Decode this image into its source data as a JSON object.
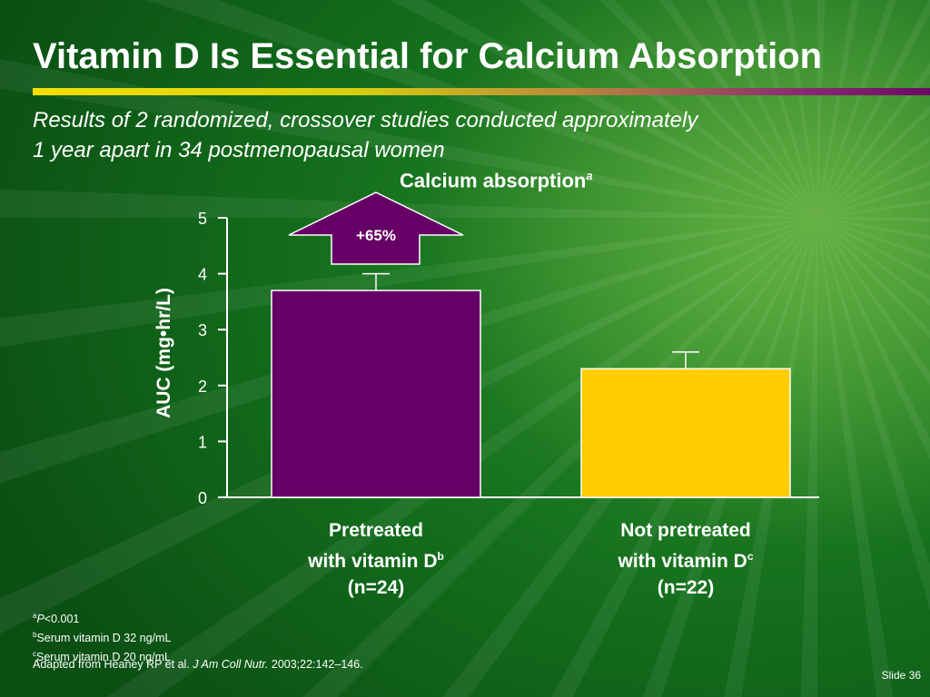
{
  "slide": {
    "title": "Vitamin D Is Essential for Calcium Absorption",
    "subtitle_line1": "Results of 2 randomized, crossover studies conducted approximately",
    "subtitle_line2": "1 year apart in 34 postmenopausal women",
    "slide_number": "Slide 36"
  },
  "chart_data": {
    "type": "bar",
    "title": "Calcium absorption",
    "title_superscript": "a",
    "ylabel": "AUC (mg•hr/L)",
    "ylim": [
      0,
      5
    ],
    "yticks": [
      "0",
      "1",
      "2",
      "3",
      "4",
      "5"
    ],
    "categories": [
      {
        "line1": "Pretreated",
        "line2": "with vitamin D",
        "sup": "b",
        "line3": "(n=24)"
      },
      {
        "line1": "Not pretreated",
        "line2": "with vitamin D",
        "sup": "c",
        "line3": "(n=22)"
      }
    ],
    "values": [
      3.7,
      2.3
    ],
    "error_upper": [
      4.0,
      2.6
    ],
    "bar_colors": [
      "#660066",
      "#ffcc00"
    ],
    "annotation": {
      "label": "+65%",
      "color": "#660066"
    },
    "grid": false,
    "legend": "none"
  },
  "footnotes": {
    "a_sup": "a",
    "a_italic": "P",
    "a_text": "<0.001",
    "b_sup": "b",
    "b_text": "Serum vitamin D 32 ng/mL",
    "c_sup": "c",
    "c_text": "Serum vitamin D 20 ng/mL",
    "source_prefix": "Adapted from Heaney RP et al. ",
    "source_journal": "J Am Coll Nutr.",
    "source_suffix": " 2003;22:142–146."
  }
}
